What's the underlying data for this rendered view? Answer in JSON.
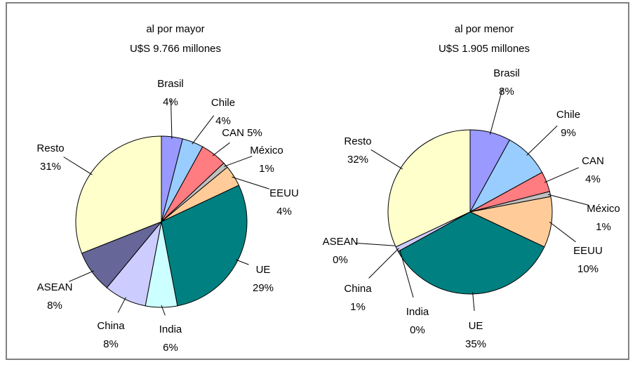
{
  "chart_data": [
    {
      "type": "pie",
      "title": "al por mayor",
      "subtitle": "U$S 9.766 millones",
      "categories": [
        "Brasil",
        "Chile",
        "CAN",
        "México",
        "EEUU",
        "UE",
        "India",
        "China",
        "ASEAN",
        "Resto"
      ],
      "values": [
        4,
        4,
        5,
        1,
        4,
        29,
        6,
        8,
        8,
        31
      ],
      "value_labels": [
        "4%",
        "4%",
        "5%",
        "1%",
        "4%",
        "29%",
        "6%",
        "8%",
        "8%",
        "31%"
      ],
      "colors": [
        "#9999ff",
        "#99ccff",
        "#ff7c80",
        "#c0c0c0",
        "#ffcc99",
        "#008080",
        "#ccffff",
        "#ccccff",
        "#666699",
        "#ffffcc"
      ]
    },
    {
      "type": "pie",
      "title": "al por menor",
      "subtitle": "U$S 1.905 millones",
      "categories": [
        "Brasil",
        "Chile",
        "CAN",
        "México",
        "EEUU",
        "UE",
        "India",
        "China",
        "ASEAN",
        "Resto"
      ],
      "values": [
        8,
        9,
        4,
        1,
        10,
        35,
        0,
        1,
        0,
        32
      ],
      "value_labels": [
        "8%",
        "9%",
        "4%",
        "1%",
        "10%",
        "35%",
        "0%",
        "1%",
        "0%",
        "32%"
      ],
      "colors": [
        "#9999ff",
        "#99ccff",
        "#ff7c80",
        "#c0c0c0",
        "#ffcc99",
        "#008080",
        "#ccffff",
        "#ccccff",
        "#666699",
        "#ffffcc"
      ]
    }
  ]
}
